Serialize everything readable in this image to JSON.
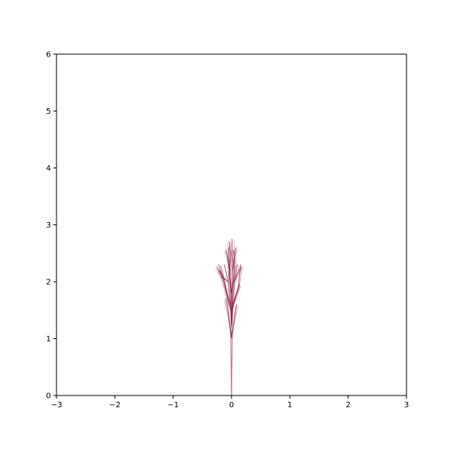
{
  "chart_data": {
    "type": "line",
    "title": "",
    "xlabel": "",
    "ylabel": "",
    "xlim": [
      -3,
      3
    ],
    "ylim": [
      0,
      6
    ],
    "grid": false,
    "x_ticks": [
      -3,
      -2,
      -1,
      0,
      1,
      2,
      3
    ],
    "y_ticks": [
      0,
      1,
      2,
      3,
      4,
      5,
      6
    ],
    "x_tick_labels": [
      "−3",
      "−2",
      "−1",
      "0",
      "1",
      "2",
      "3"
    ],
    "y_tick_labels": [
      "0",
      "1",
      "2",
      "3",
      "4",
      "5",
      "6"
    ],
    "series": [
      {
        "color": "#8b1a3c",
        "description_of_form": "many thin semi-transparent branching lines forming a plant-like cluster",
        "paths": [
          [
            [
              0.0,
              0.0
            ],
            [
              0.0,
              0.6
            ],
            [
              0.0,
              1.2
            ],
            [
              -0.02,
              1.6
            ],
            [
              -0.06,
              2.0
            ],
            [
              -0.12,
              2.3
            ]
          ],
          [
            [
              0.0,
              1.2
            ],
            [
              0.02,
              1.6
            ],
            [
              0.05,
              2.0
            ],
            [
              0.1,
              2.3
            ]
          ],
          [
            [
              0.0,
              1.2
            ],
            [
              -0.01,
              1.7
            ],
            [
              -0.03,
              2.2
            ],
            [
              -0.05,
              2.6
            ]
          ],
          [
            [
              0.0,
              1.2
            ],
            [
              0.01,
              1.7
            ],
            [
              0.02,
              2.2
            ],
            [
              0.01,
              2.75
            ]
          ],
          [
            [
              -0.02,
              1.6
            ],
            [
              -0.1,
              1.9
            ],
            [
              -0.2,
              2.2
            ]
          ],
          [
            [
              0.02,
              1.6
            ],
            [
              0.12,
              1.9
            ],
            [
              0.16,
              2.3
            ]
          ],
          [
            [
              -0.01,
              1.5
            ],
            [
              -0.08,
              1.75
            ],
            [
              -0.15,
              2.1
            ],
            [
              -0.22,
              2.3
            ]
          ],
          [
            [
              0.01,
              1.5
            ],
            [
              0.08,
              1.75
            ],
            [
              0.14,
              1.95
            ]
          ],
          [
            [
              -0.03,
              2.2
            ],
            [
              -0.07,
              2.45
            ],
            [
              -0.1,
              2.55
            ]
          ],
          [
            [
              0.02,
              2.2
            ],
            [
              0.05,
              2.45
            ],
            [
              0.08,
              2.6
            ]
          ],
          [
            [
              0.0,
              1.0
            ],
            [
              -0.05,
              1.4
            ],
            [
              -0.1,
              1.7
            ]
          ],
          [
            [
              0.0,
              1.0
            ],
            [
              0.05,
              1.35
            ],
            [
              0.09,
              1.6
            ]
          ],
          [
            [
              -0.06,
              2.0
            ],
            [
              -0.16,
              2.1
            ],
            [
              -0.25,
              2.25
            ]
          ],
          [
            [
              0.05,
              2.0
            ],
            [
              0.1,
              2.15
            ],
            [
              0.17,
              2.25
            ]
          ],
          [
            [
              0.0,
              1.8
            ],
            [
              -0.04,
              2.1
            ],
            [
              -0.02,
              2.45
            ],
            [
              -0.04,
              2.7
            ]
          ],
          [
            [
              0.0,
              1.8
            ],
            [
              0.04,
              2.05
            ],
            [
              0.06,
              2.35
            ],
            [
              0.03,
              2.55
            ]
          ]
        ]
      }
    ]
  }
}
